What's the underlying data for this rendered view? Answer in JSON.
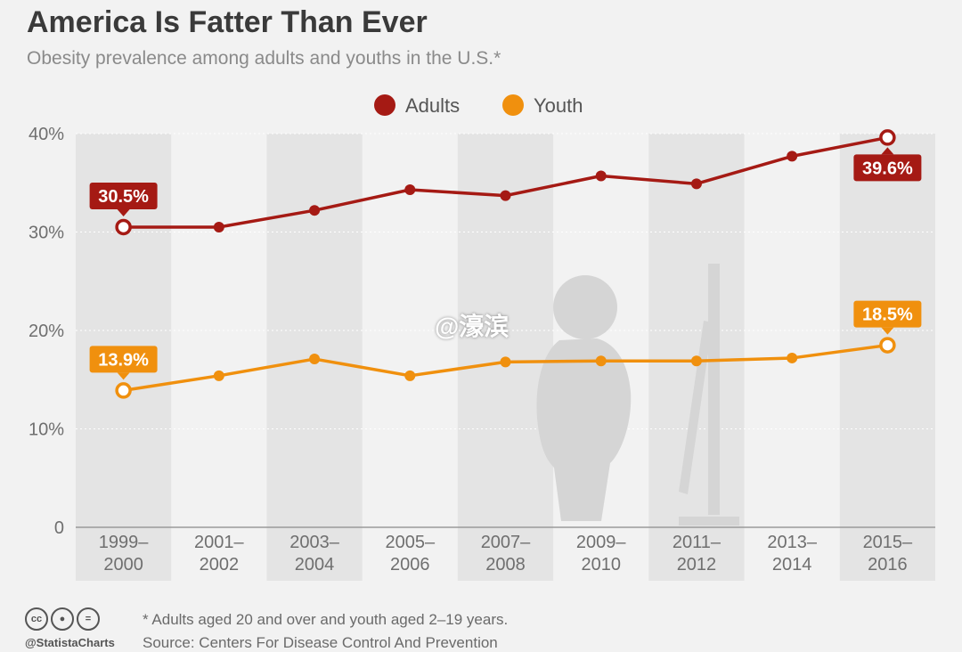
{
  "header": {
    "title": "America Is Fatter Than Ever",
    "subtitle": "Obesity prevalence among adults and youths in the U.S.*"
  },
  "colors": {
    "adults": "#a51a14",
    "youth": "#f0900e"
  },
  "footer": {
    "handle": "@StatistaCharts",
    "footnote": "* Adults aged 20 and over and youth aged 2–19 years.",
    "source": "Source: Centers For Disease Control And Prevention",
    "license_icons": [
      "cc-icon",
      "attribution-icon",
      "no-derivatives-icon"
    ]
  },
  "watermark": "@濠滨",
  "chart_data": {
    "type": "line",
    "title": "America Is Fatter Than Ever",
    "subtitle": "Obesity prevalence among adults and youths in the U.S.*",
    "categories": [
      [
        "1999–",
        "2000"
      ],
      [
        "2001–",
        "2002"
      ],
      [
        "2003–",
        "2004"
      ],
      [
        "2005–",
        "2006"
      ],
      [
        "2007–",
        "2008"
      ],
      [
        "2009–",
        "2010"
      ],
      [
        "2011–",
        "2012"
      ],
      [
        "2013–",
        "2014"
      ],
      [
        "2015–",
        "2016"
      ]
    ],
    "series": [
      {
        "name": "Adults",
        "values": [
          30.5,
          30.5,
          32.2,
          34.3,
          33.7,
          35.7,
          34.9,
          37.7,
          39.6
        ]
      },
      {
        "name": "Youth",
        "values": [
          13.9,
          15.4,
          17.1,
          15.4,
          16.8,
          16.9,
          16.9,
          17.2,
          18.5
        ]
      }
    ],
    "y_ticks": [
      {
        "value": 0,
        "label": "0"
      },
      {
        "value": 10,
        "label": "10%"
      },
      {
        "value": 20,
        "label": "20%"
      },
      {
        "value": 30,
        "label": "30%"
      },
      {
        "value": 40,
        "label": "40%"
      }
    ],
    "ylim": [
      0,
      40
    ],
    "annotations": [
      {
        "series": 0,
        "index": 0,
        "text": "30.5%",
        "position": "above"
      },
      {
        "series": 0,
        "index": 8,
        "text": "39.6%",
        "position": "below"
      },
      {
        "series": 1,
        "index": 0,
        "text": "13.9%",
        "position": "above"
      },
      {
        "series": 1,
        "index": 8,
        "text": "18.5%",
        "position": "above"
      }
    ],
    "legend_position": "top-center",
    "grid": true
  }
}
